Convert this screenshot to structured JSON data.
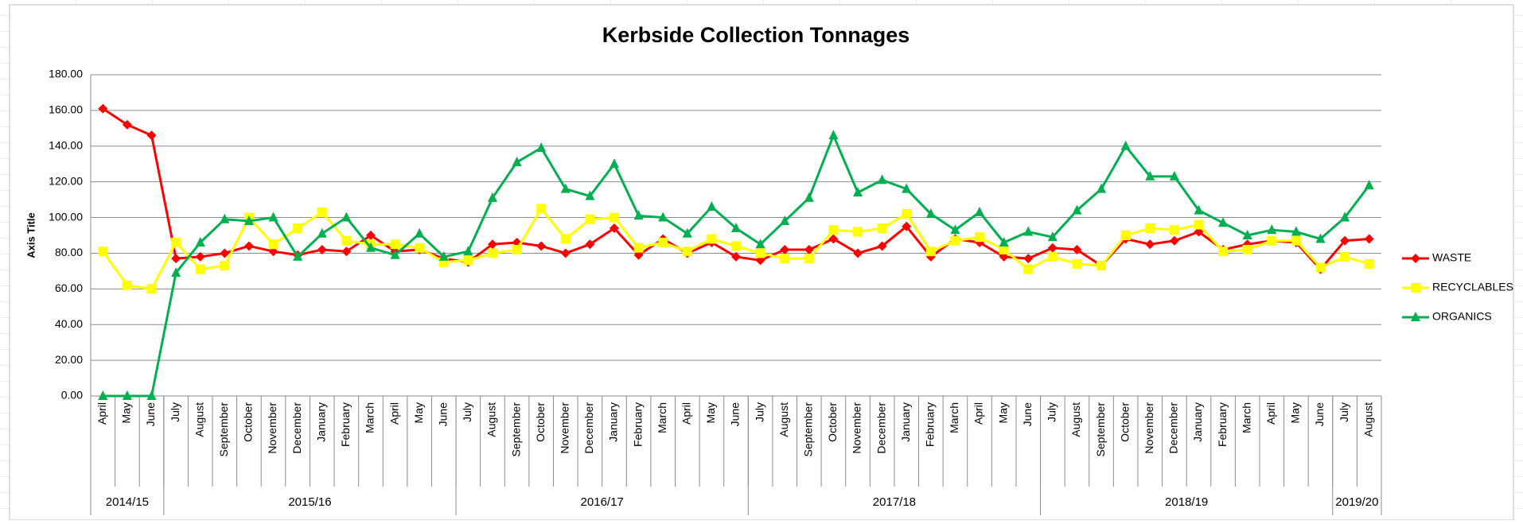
{
  "chart_data": {
    "type": "line",
    "title": "Kerbside Collection Tonnages",
    "y_axis_label": "Axis Title",
    "categories": [
      "April",
      "May",
      "June",
      "July",
      "August",
      "September",
      "October",
      "November",
      "December",
      "January",
      "February",
      "March",
      "April",
      "May",
      "June",
      "July",
      "August",
      "September",
      "October",
      "November",
      "December",
      "January",
      "February",
      "March",
      "April",
      "May",
      "June",
      "July",
      "August",
      "September",
      "October",
      "November",
      "December",
      "January",
      "February",
      "March",
      "April",
      "May",
      "June",
      "July",
      "August",
      "September",
      "October",
      "November",
      "December",
      "January",
      "February",
      "March",
      "April",
      "May",
      "June",
      "July",
      "August"
    ],
    "category_groups": [
      {
        "label": "2014/15",
        "span": 3
      },
      {
        "label": "2015/16",
        "span": 12
      },
      {
        "label": "2016/17",
        "span": 12
      },
      {
        "label": "2017/18",
        "span": 12
      },
      {
        "label": "2018/19",
        "span": 12
      },
      {
        "label": "2019/20",
        "span": 2
      }
    ],
    "series": [
      {
        "name": "WASTE",
        "color": "#ff0000",
        "marker": "diamond",
        "values": [
          161,
          152,
          146,
          77,
          78,
          80,
          84,
          81,
          79,
          82,
          81,
          90,
          81,
          82,
          77,
          75,
          85,
          86,
          84,
          80,
          85,
          94,
          79,
          88,
          80,
          86,
          78,
          76,
          82,
          82,
          88,
          80,
          84,
          95,
          78,
          88,
          86,
          78,
          77,
          83,
          82,
          73,
          88,
          85,
          87,
          92,
          82,
          85,
          87,
          86,
          71,
          87,
          88
        ]
      },
      {
        "name": "RECYCLABLES",
        "color": "#ffff00",
        "marker": "square",
        "values": [
          81,
          62,
          60,
          86,
          71,
          73,
          100,
          85,
          94,
          103,
          87,
          85,
          85,
          83,
          75,
          76,
          80,
          82,
          105,
          88,
          99,
          100,
          83,
          86,
          81,
          88,
          84,
          80,
          77,
          77,
          93,
          92,
          94,
          102,
          81,
          87,
          89,
          82,
          71,
          78,
          74,
          73,
          90,
          94,
          93,
          96,
          81,
          82,
          87,
          87,
          72,
          78,
          74
        ]
      },
      {
        "name": "ORGANICS",
        "color": "#00b050",
        "marker": "triangle",
        "values": [
          0,
          0,
          0,
          69,
          86,
          99,
          98,
          100,
          78,
          91,
          100,
          83,
          79,
          91,
          78,
          81,
          111,
          131,
          139,
          116,
          112,
          130,
          101,
          100,
          91,
          106,
          94,
          85,
          98,
          111,
          146,
          114,
          121,
          116,
          102,
          93,
          103,
          86,
          92,
          89,
          104,
          116,
          140,
          123,
          123,
          104,
          97,
          90,
          93,
          92,
          88,
          100,
          118
        ]
      }
    ],
    "ylim": [
      0,
      180
    ],
    "yticks": [
      {
        "value": 0,
        "label": "0.00"
      },
      {
        "value": 20,
        "label": "20.00"
      },
      {
        "value": 40,
        "label": "40.00"
      },
      {
        "value": 60,
        "label": "60.00"
      },
      {
        "value": 80,
        "label": "80.00"
      },
      {
        "value": 100,
        "label": "100.00"
      },
      {
        "value": 120,
        "label": "120.00"
      },
      {
        "value": 140,
        "label": "140.00"
      },
      {
        "value": 160,
        "label": "160.00"
      },
      {
        "value": 180,
        "label": "180.00"
      }
    ],
    "grid": true,
    "legend": "right"
  }
}
